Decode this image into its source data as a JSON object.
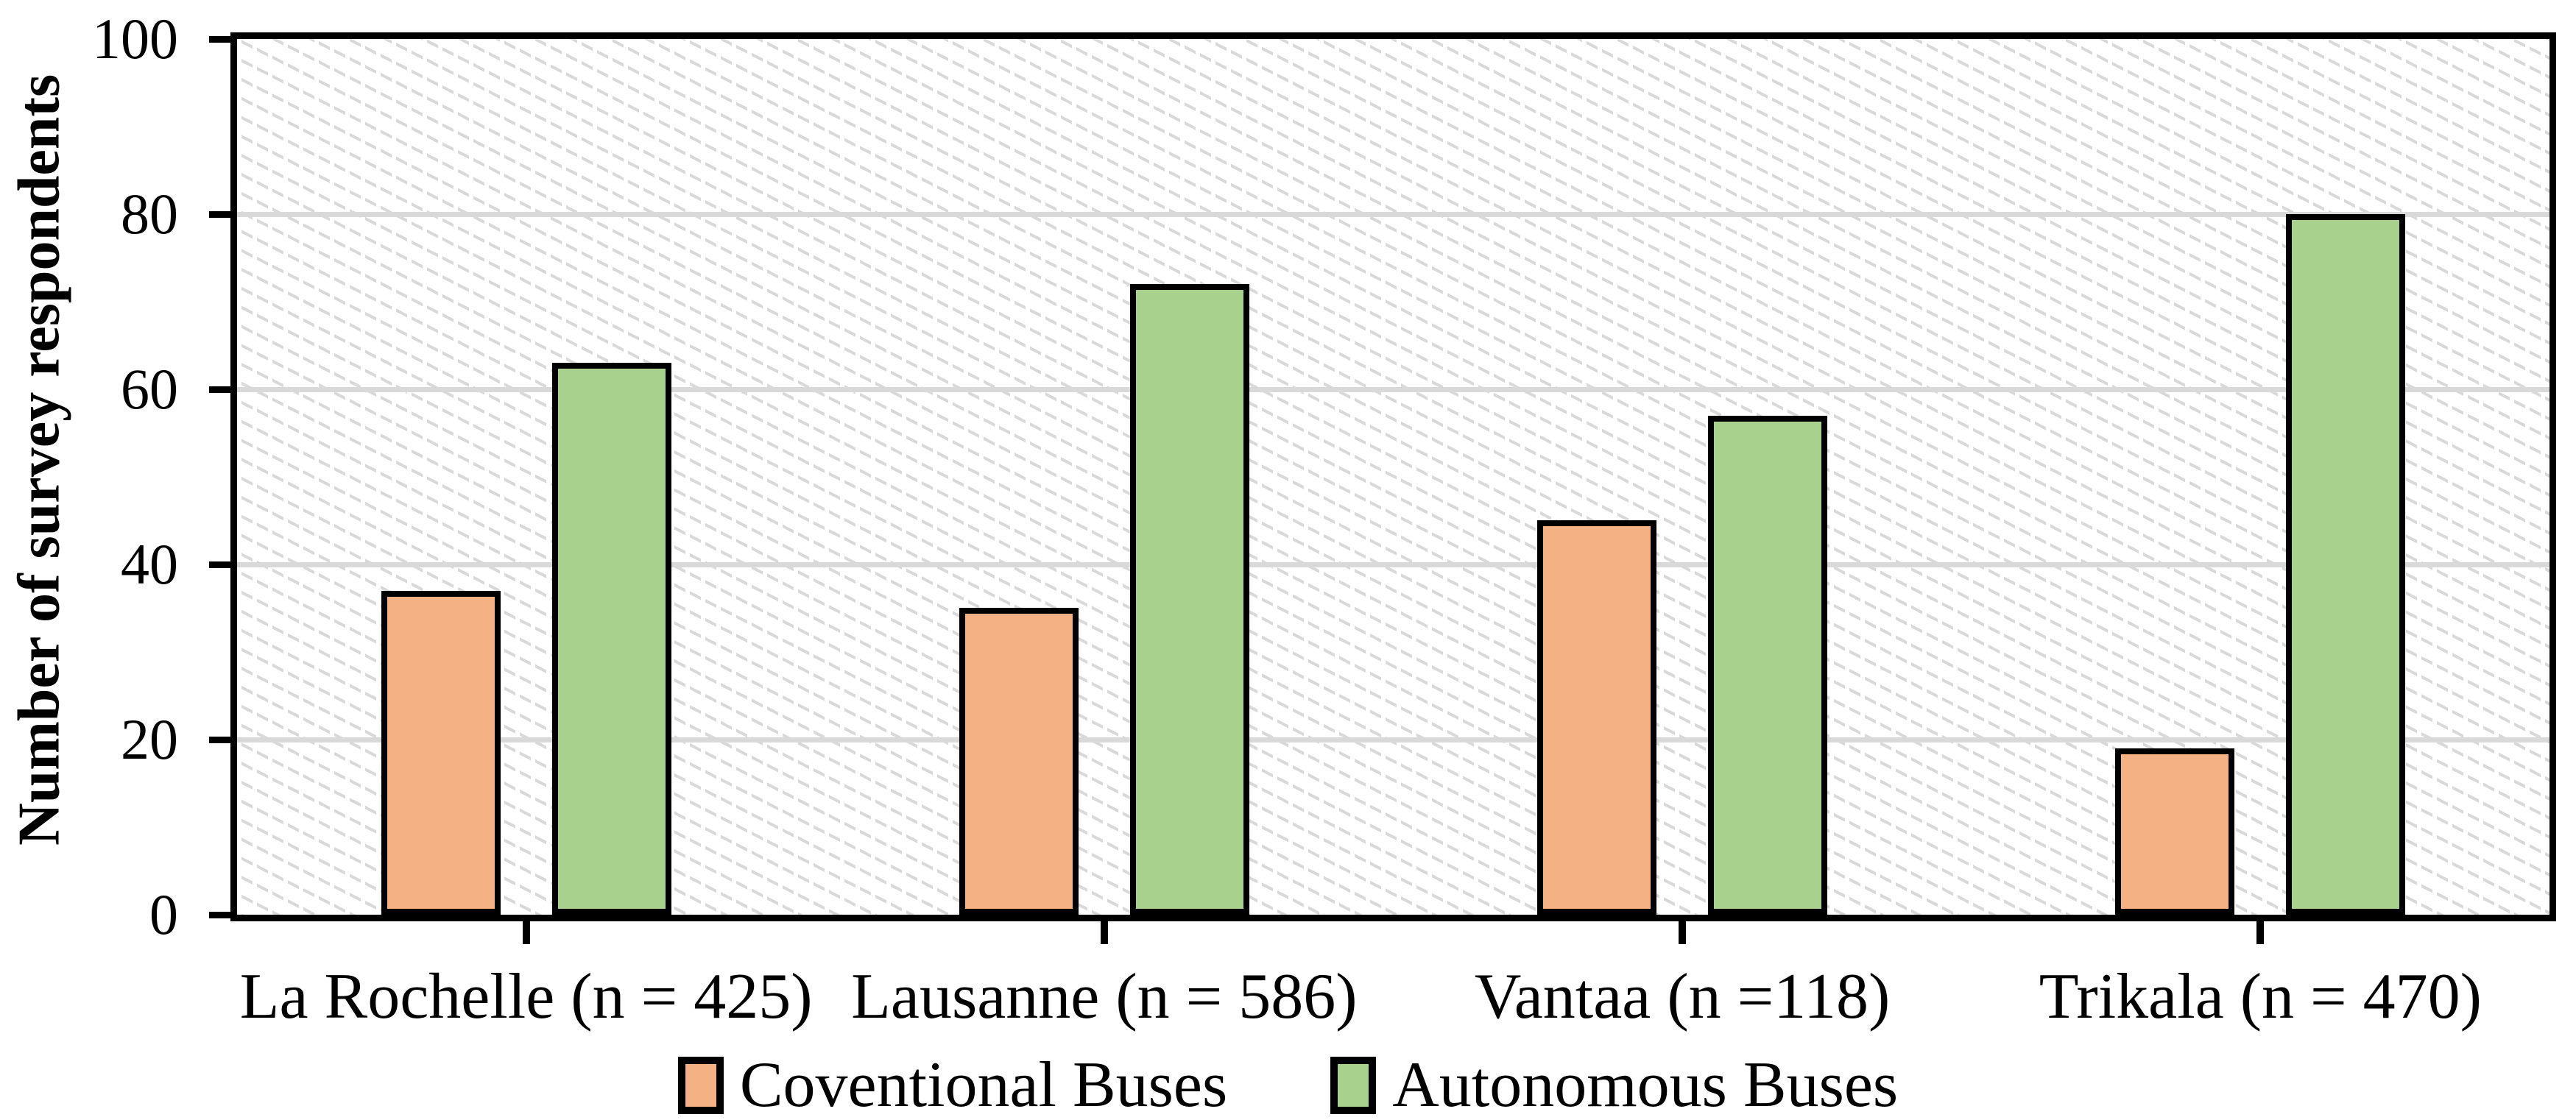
{
  "chart_data": {
    "type": "bar",
    "categories": [
      "La Rochelle (n = 425)",
      "Lausanne (n = 586)",
      "Vantaa (n =118)",
      "Trikala (n = 470)"
    ],
    "series": [
      {
        "name": "Coventional Buses",
        "color": "#F4B183",
        "values": [
          37,
          35,
          45,
          19
        ]
      },
      {
        "name": "Autonomous Buses",
        "color": "#A9D18E",
        "values": [
          63,
          72,
          57,
          80
        ]
      }
    ],
    "title": "",
    "xlabel": "",
    "ylabel": "Number of survey respondents",
    "ylim": [
      0,
      100
    ],
    "yticks": [
      0,
      20,
      40,
      60,
      80,
      100
    ],
    "grid": "horizontal",
    "gridline_color": "#d9d9d9",
    "bar_border_color": "#000000",
    "plot_background": "light-downward-diagonal-hatch",
    "legend_position": "bottom"
  }
}
